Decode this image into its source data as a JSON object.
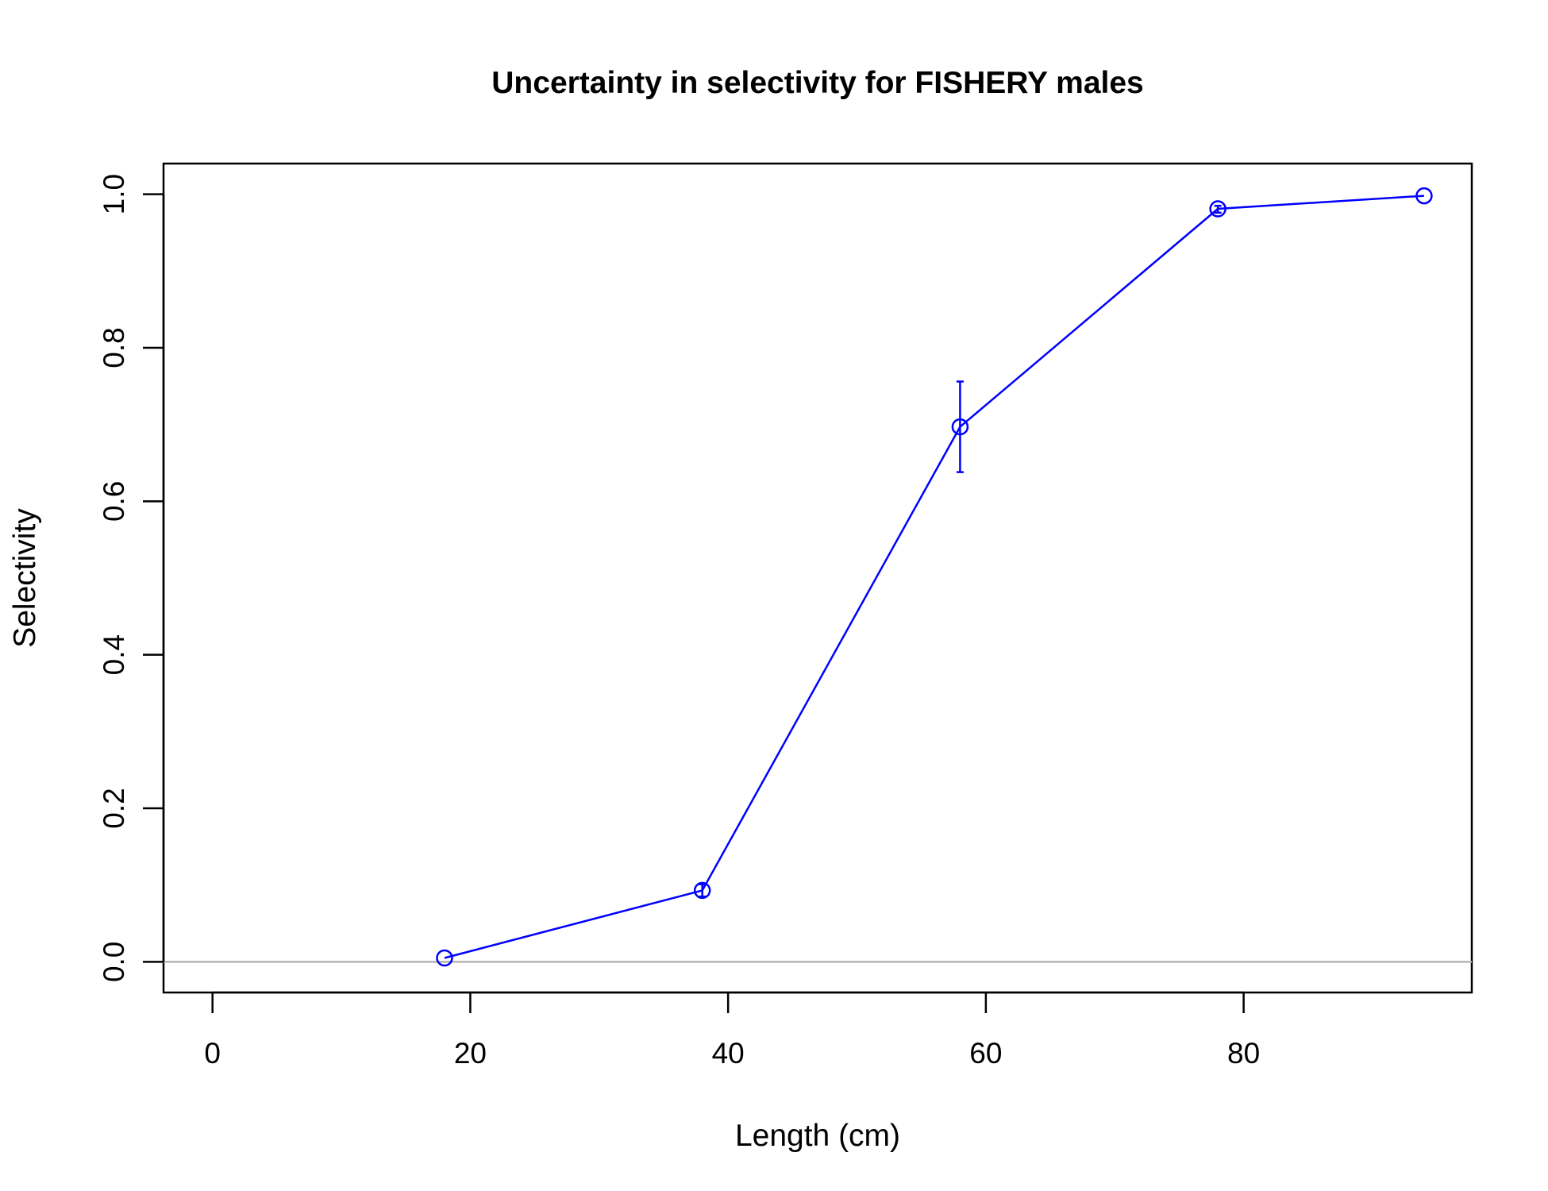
{
  "chart_data": {
    "type": "line",
    "title": "Uncertainty in selectivity for FISHERY males",
    "xlabel": "Length (cm)",
    "ylabel": "Selectivity",
    "xlim": [
      -3.8,
      97.7
    ],
    "ylim": [
      -0.04,
      1.04
    ],
    "x_ticks": [
      0,
      20,
      40,
      60,
      80
    ],
    "x_tick_labels": [
      "0",
      "20",
      "40",
      "60",
      "80"
    ],
    "y_ticks": [
      0.0,
      0.2,
      0.4,
      0.6,
      0.8,
      1.0
    ],
    "y_tick_labels": [
      "0.0",
      "0.2",
      "0.4",
      "0.6",
      "0.8",
      "1.0"
    ],
    "reference_line": {
      "y": 0,
      "color": "#b3b3b3"
    },
    "grid": false,
    "series": [
      {
        "color": "#0000ff",
        "points": [
          {
            "x": 18,
            "y": 0.005,
            "lower": 0.005,
            "upper": 0.005
          },
          {
            "x": 38,
            "y": 0.093,
            "lower": 0.085,
            "upper": 0.101
          },
          {
            "x": 58,
            "y": 0.697,
            "lower": 0.638,
            "upper": 0.756
          },
          {
            "x": 78,
            "y": 0.981,
            "lower": 0.976,
            "upper": 0.985
          },
          {
            "x": 94,
            "y": 0.998,
            "lower": 0.998,
            "upper": 0.998
          }
        ]
      }
    ]
  }
}
